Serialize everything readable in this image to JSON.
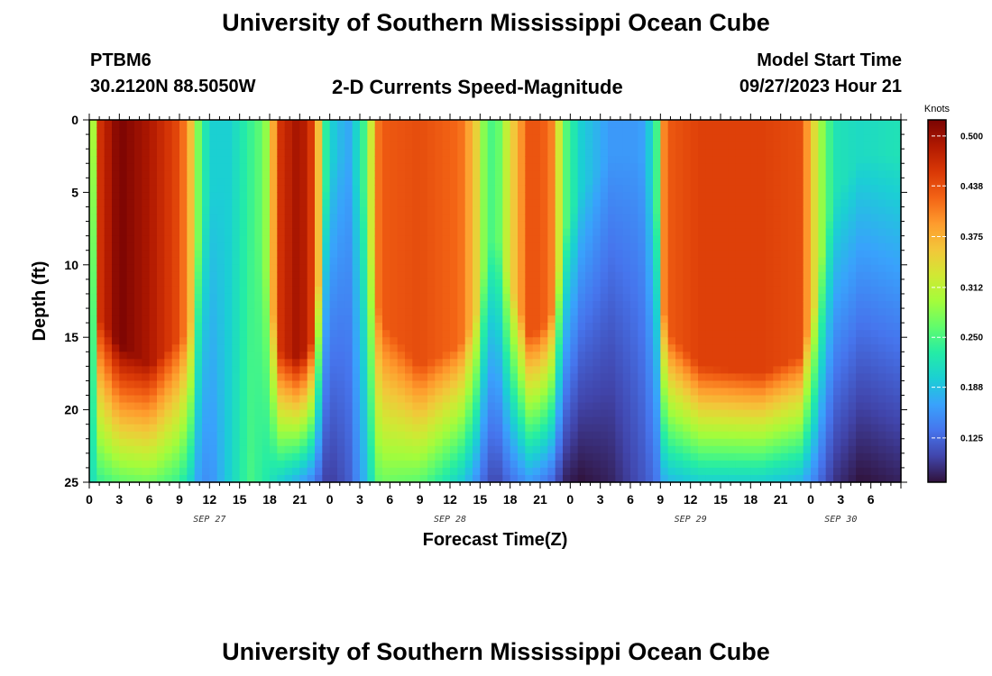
{
  "header": {
    "title": "University of Southern Mississippi Ocean Cube",
    "station_id": "PTBM6",
    "coords": "30.2120N  88.5050W",
    "chart_title": "2-D Currents Speed-Magnitude",
    "model_start_label": "Model Start Time",
    "model_start_value": "09/27/2023 Hour 21"
  },
  "footer": {
    "title": "University of Southern Mississippi Ocean Cube"
  },
  "colors": {
    "colormap": [
      "#30123b",
      "#4145ab",
      "#4675ed",
      "#39a2fc",
      "#1bcfd4",
      "#24eca6",
      "#61fc6c",
      "#a4fc3b",
      "#d1e834",
      "#f3c63a",
      "#fe9b2d",
      "#f36315",
      "#d93806",
      "#b11901",
      "#7a0403"
    ]
  },
  "chart_data": {
    "type": "heatmap",
    "title": "2-D Currents Speed-Magnitude",
    "xlabel": "Forecast Time(Z)",
    "ylabel": "Depth (ft)",
    "x_range_hours": [
      0,
      81
    ],
    "y_range": [
      0,
      25
    ],
    "x_tick_labels": [
      "0",
      "3",
      "6",
      "9",
      "12",
      "15",
      "18",
      "21",
      "0",
      "3",
      "6",
      "9",
      "12",
      "15",
      "18",
      "21",
      "0",
      "3",
      "6",
      "9",
      "12",
      "15",
      "18",
      "21",
      "0",
      "3",
      "6"
    ],
    "y_ticks": [
      0,
      5,
      10,
      15,
      20,
      25
    ],
    "y_tick_labels": [
      "0",
      "5",
      "10",
      "15",
      "20",
      "25"
    ],
    "date_labels": [
      {
        "text": "SEP 27",
        "hour": 12
      },
      {
        "text": "SEP 28",
        "hour": 36
      },
      {
        "text": "SEP 29",
        "hour": 60
      },
      {
        "text": "SEP 30",
        "hour": 75
      }
    ],
    "colorbar": {
      "unit": "Knots",
      "min": 0.07,
      "max": 0.52,
      "ticks": [
        0.125,
        0.188,
        0.25,
        0.312,
        0.375,
        0.438,
        0.5
      ],
      "tick_labels": [
        "0.125",
        "0.188",
        "0.250",
        "0.312",
        "0.375",
        "0.438",
        "0.500"
      ]
    },
    "grid": false,
    "profiles": [
      {
        "hour": 0,
        "top": 0.28,
        "bottom": 0.22,
        "decay": 0
      },
      {
        "hour": 0.5,
        "top": 0.31,
        "bottom": 0.22,
        "decay": 0
      },
      {
        "hour": 1,
        "top": 0.46,
        "bottom": 0.24,
        "decay": 0.55
      },
      {
        "hour": 3,
        "top": 0.52,
        "bottom": 0.26,
        "decay": 0.62
      },
      {
        "hour": 6,
        "top": 0.49,
        "bottom": 0.27,
        "decay": 0.68
      },
      {
        "hour": 9,
        "top": 0.44,
        "bottom": 0.24,
        "decay": 0.6
      },
      {
        "hour": 10,
        "top": 0.38,
        "bottom": 0.21,
        "decay": 0.6
      },
      {
        "hour": 11,
        "top": 0.26,
        "bottom": 0.16,
        "decay": 0.3
      },
      {
        "hour": 12,
        "top": 0.2,
        "bottom": 0.15,
        "decay": 0.2
      },
      {
        "hour": 14,
        "top": 0.2,
        "bottom": 0.2,
        "decay": 0.1
      },
      {
        "hour": 16,
        "top": 0.24,
        "bottom": 0.25,
        "decay": 0.2
      },
      {
        "hour": 17.5,
        "top": 0.27,
        "bottom": 0.23,
        "decay": 0.4
      },
      {
        "hour": 19,
        "top": 0.46,
        "bottom": 0.2,
        "decay": 0.64
      },
      {
        "hour": 21,
        "top": 0.5,
        "bottom": 0.17,
        "decay": 0.66
      },
      {
        "hour": 22.5,
        "top": 0.44,
        "bottom": 0.14,
        "decay": 0.6
      },
      {
        "hour": 23.5,
        "top": 0.24,
        "bottom": 0.1,
        "decay": 0.2
      },
      {
        "hour": 24.5,
        "top": 0.19,
        "bottom": 0.1,
        "decay": 0.1
      },
      {
        "hour": 26,
        "top": 0.17,
        "bottom": 0.12,
        "decay": 0.1
      },
      {
        "hour": 27.5,
        "top": 0.25,
        "bottom": 0.18,
        "decay": 0.2
      },
      {
        "hour": 29,
        "top": 0.43,
        "bottom": 0.27,
        "decay": 0.55
      },
      {
        "hour": 33,
        "top": 0.44,
        "bottom": 0.26,
        "decay": 0.68
      },
      {
        "hour": 37,
        "top": 0.42,
        "bottom": 0.2,
        "decay": 0.62
      },
      {
        "hour": 38.5,
        "top": 0.36,
        "bottom": 0.16,
        "decay": 0.55
      },
      {
        "hour": 39.5,
        "top": 0.27,
        "bottom": 0.12,
        "decay": 0.4
      },
      {
        "hour": 40.5,
        "top": 0.24,
        "bottom": 0.1,
        "decay": 0.3
      },
      {
        "hour": 42,
        "top": 0.34,
        "bottom": 0.13,
        "decay": 0.45
      },
      {
        "hour": 44,
        "top": 0.44,
        "bottom": 0.16,
        "decay": 0.6
      },
      {
        "hour": 46,
        "top": 0.42,
        "bottom": 0.13,
        "decay": 0.55
      },
      {
        "hour": 47.5,
        "top": 0.26,
        "bottom": 0.08,
        "decay": 0.3
      },
      {
        "hour": 49,
        "top": 0.2,
        "bottom": 0.07,
        "decay": 0.2
      },
      {
        "hour": 52,
        "top": 0.16,
        "bottom": 0.08,
        "decay": 0.1
      },
      {
        "hour": 55,
        "top": 0.16,
        "bottom": 0.11,
        "decay": 0.1
      },
      {
        "hour": 56.5,
        "top": 0.22,
        "bottom": 0.13,
        "decay": 0.2
      },
      {
        "hour": 57.5,
        "top": 0.43,
        "bottom": 0.18,
        "decay": 0.58
      },
      {
        "hour": 61,
        "top": 0.45,
        "bottom": 0.2,
        "decay": 0.68
      },
      {
        "hour": 67,
        "top": 0.45,
        "bottom": 0.2,
        "decay": 0.7
      },
      {
        "hour": 71,
        "top": 0.44,
        "bottom": 0.18,
        "decay": 0.65
      },
      {
        "hour": 72.5,
        "top": 0.33,
        "bottom": 0.14,
        "decay": 0.5
      },
      {
        "hour": 73.5,
        "top": 0.26,
        "bottom": 0.11,
        "decay": 0.3
      },
      {
        "hour": 74.5,
        "top": 0.22,
        "bottom": 0.09,
        "decay": 0.2
      },
      {
        "hour": 77,
        "top": 0.21,
        "bottom": 0.07,
        "decay": 0.1
      },
      {
        "hour": 81,
        "top": 0.22,
        "bottom": 0.08,
        "decay": 0.1
      }
    ]
  }
}
